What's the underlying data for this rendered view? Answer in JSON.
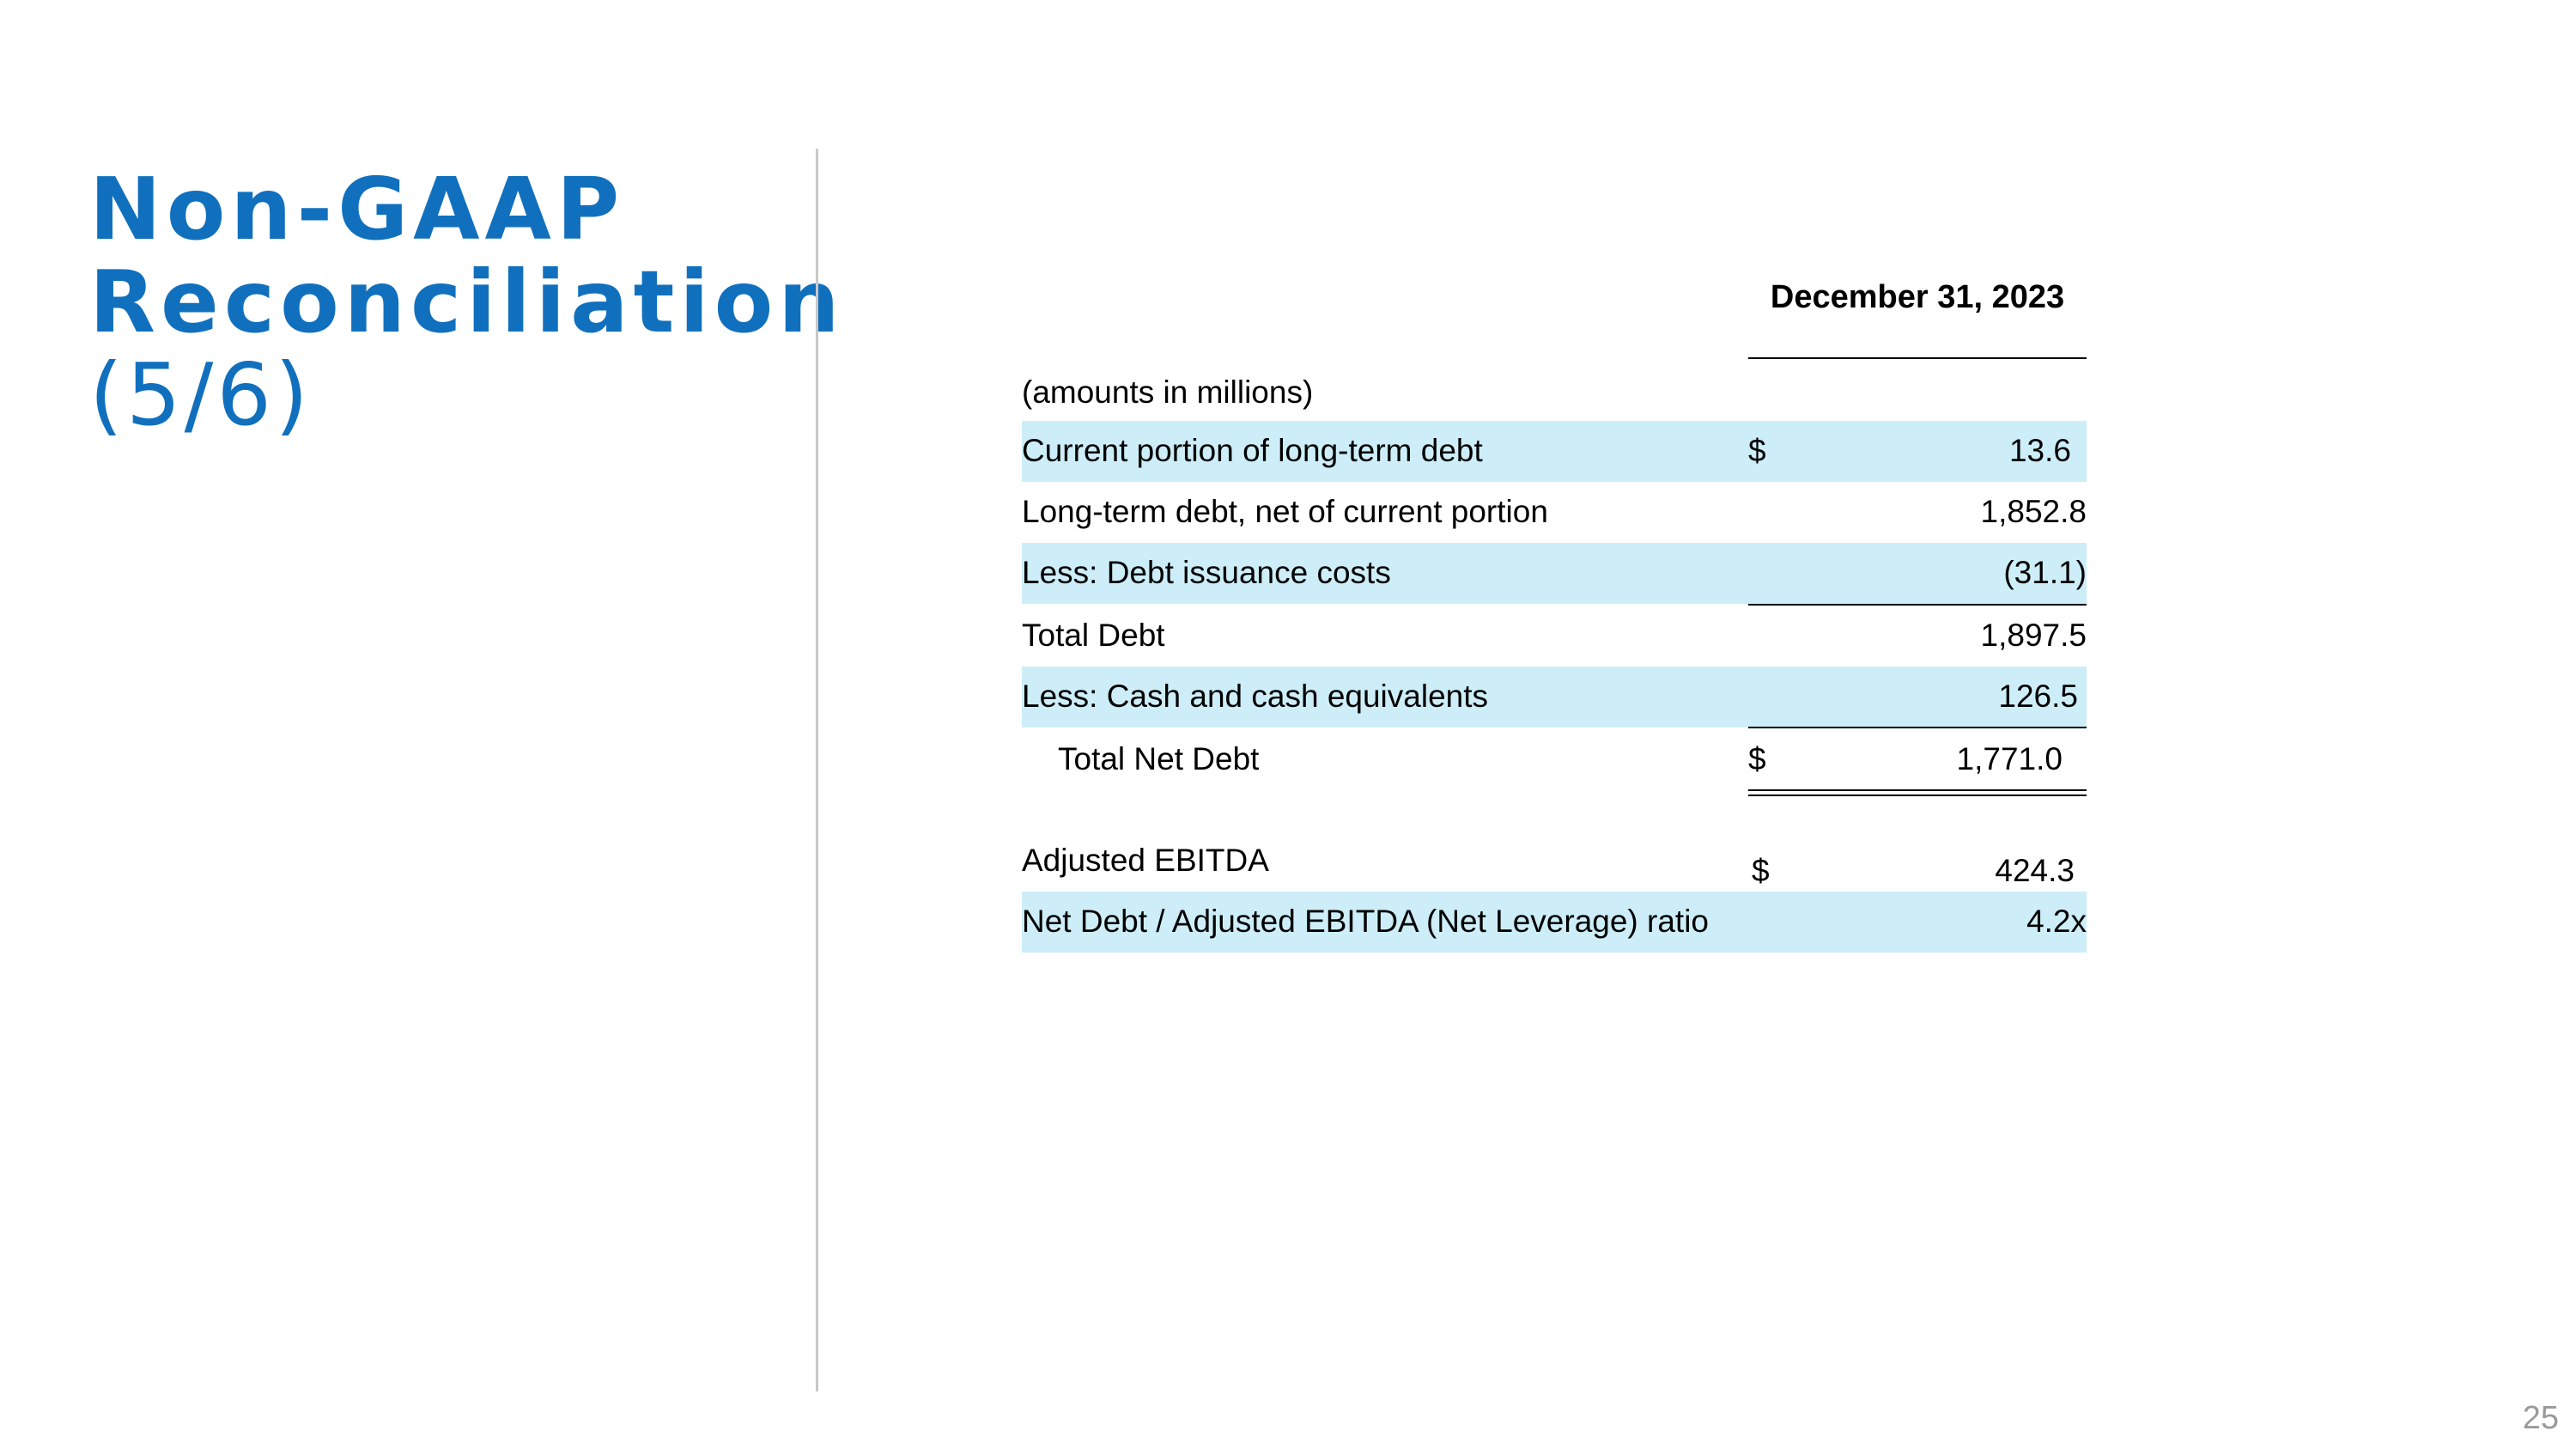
{
  "title": {
    "line1": "Non-GAAP",
    "line2": "Reconciliation",
    "line3": "(5/6)"
  },
  "page_number": "25",
  "table": {
    "column_header": "December 31, 2023",
    "units_note": "(amounts in millions)",
    "rows": [
      {
        "label": "Current portion of long-term debt",
        "currency": "$",
        "value": "13.6"
      },
      {
        "label": "Long-term debt, net of current portion",
        "currency": "",
        "value": "1,852.8"
      },
      {
        "label": "Less: Debt issuance costs",
        "currency": "",
        "value": "(31.1)"
      },
      {
        "label": "Total Debt",
        "currency": "",
        "value": "1,897.5"
      },
      {
        "label": "Less: Cash and cash equivalents",
        "currency": "",
        "value": "126.5"
      },
      {
        "label": "Total Net Debt",
        "currency": "$",
        "value": "1,771.0"
      },
      {
        "label": "Adjusted EBITDA",
        "currency": "$",
        "value": "424.3"
      },
      {
        "label": "Net Debt / Adjusted EBITDA (Net Leverage) ratio",
        "currency": "",
        "value": "4.2x"
      }
    ]
  },
  "colors": {
    "title": "#1170BE",
    "row_shade": "#CDEEF8"
  }
}
